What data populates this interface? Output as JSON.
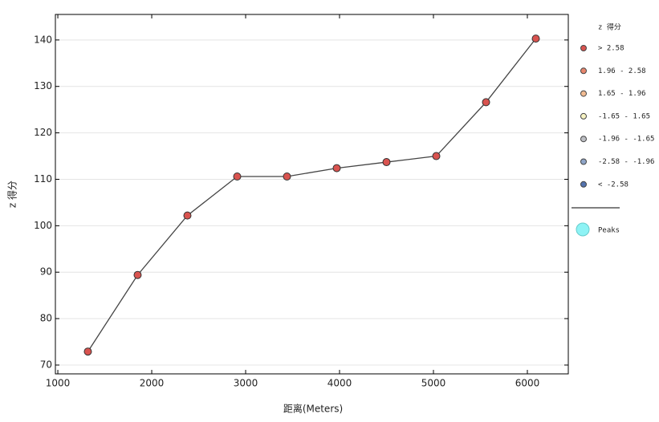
{
  "chart_data": {
    "type": "line",
    "x_label": "距离(Meters)",
    "y_label": "z 得分",
    "x": [
      1320,
      1850,
      2380,
      2910,
      3440,
      3970,
      4500,
      5030,
      5560,
      6090
    ],
    "series": [
      {
        "name": "> 2.58",
        "color": "#d9534f",
        "values": [
          72.9,
          89.4,
          102.2,
          110.6,
          110.6,
          112.4,
          113.7,
          115.0,
          126.6,
          140.3
        ]
      }
    ],
    "line_color": "#444444",
    "xlim": [
      974,
      6436
    ],
    "xticks": [
      1000,
      2000,
      3000,
      4000,
      5000,
      6000
    ],
    "ylim": [
      68.1,
      145.5
    ],
    "yticks": [
      70,
      80,
      90,
      100,
      110,
      120,
      130,
      140
    ],
    "grid": true,
    "legend": {
      "title": "z 得分",
      "items": [
        {
          "label": "> 2.58",
          "color": "#d9534f"
        },
        {
          "label": "1.96 - 2.58",
          "color": "#e8866d"
        },
        {
          "label": "1.65 - 1.96",
          "color": "#f1bb92"
        },
        {
          "label": "-1.65 - 1.65",
          "color": "#f7f3c2"
        },
        {
          "label": "-1.96 - -1.65",
          "color": "#bdbfc4"
        },
        {
          "label": "-2.58 - -1.96",
          "color": "#8fa5c8"
        },
        {
          "label": "< -2.58",
          "color": "#5473ae"
        }
      ],
      "peaks": {
        "label": "Peaks",
        "color": "#8ef3f5"
      }
    }
  }
}
